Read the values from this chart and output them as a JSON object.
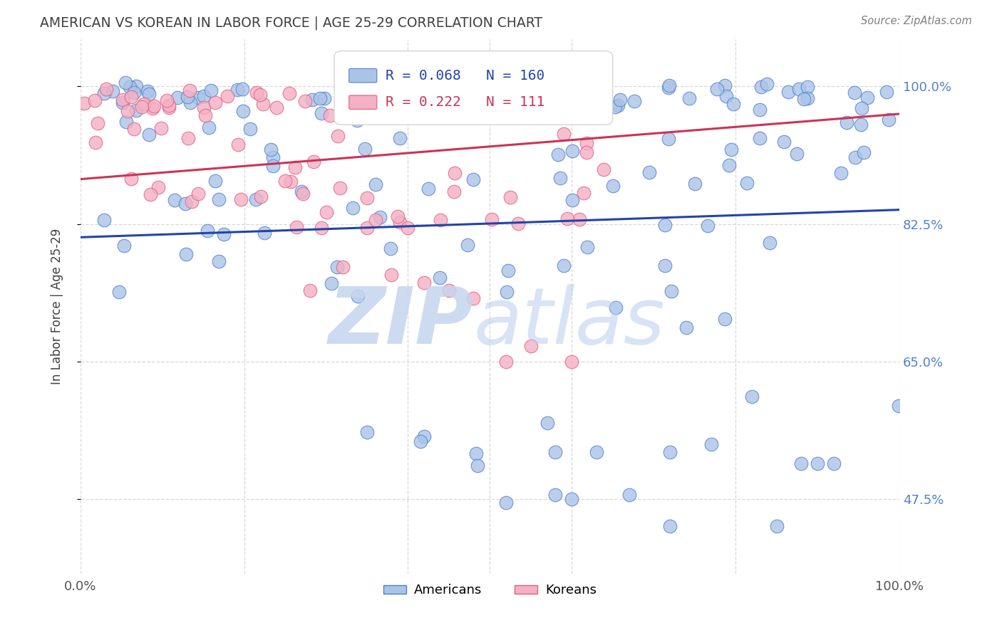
{
  "title": "AMERICAN VS KOREAN IN LABOR FORCE | AGE 25-29 CORRELATION CHART",
  "source": "Source: ZipAtlas.com",
  "ylabel": "In Labor Force | Age 25-29",
  "xlim": [
    0.0,
    1.0
  ],
  "ylim": [
    0.38,
    1.06
  ],
  "american_R": 0.068,
  "american_N": 160,
  "korean_R": 0.222,
  "korean_N": 111,
  "american_color": "#aac4e8",
  "korean_color": "#f4b0c4",
  "american_edge_color": "#5080cc",
  "korean_edge_color": "#e06080",
  "american_line_color": "#2244aa",
  "korean_line_color": "#cc3355",
  "watermark_zip_color": "#c5d5ee",
  "watermark_atlas_color": "#b8ccee",
  "background_color": "#ffffff",
  "grid_color": "#d8d8d8",
  "title_color": "#404040",
  "tick_color": "#5080d0",
  "ytick_positions": [
    0.475,
    0.65,
    0.825,
    1.0
  ],
  "ytick_labels": [
    "47.5%",
    "65.0%",
    "82.5%",
    "100.0%"
  ],
  "xtick_positions": [
    0.0,
    1.0
  ],
  "xtick_labels": [
    "0.0%",
    "100.0%"
  ],
  "am_line_x0": 0.0,
  "am_line_y0": 0.808,
  "am_line_x1": 1.0,
  "am_line_y1": 0.843,
  "ko_line_x0": 0.0,
  "ko_line_y0": 0.882,
  "ko_line_x1": 1.0,
  "ko_line_y1": 0.965
}
